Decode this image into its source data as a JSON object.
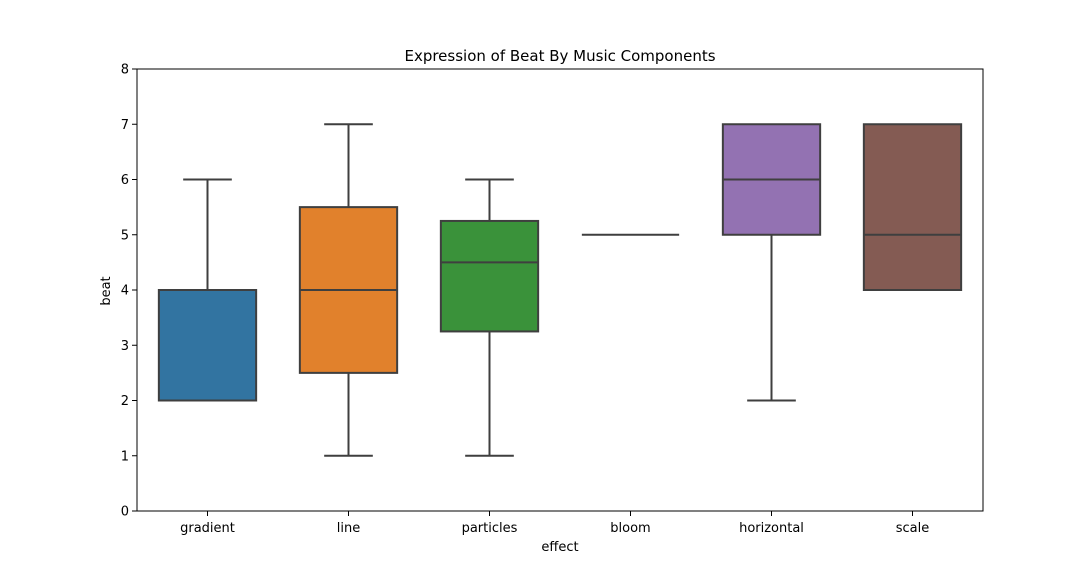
{
  "chart_data": {
    "type": "box",
    "title": "Expression of Beat By Music Components",
    "xlabel": "effect",
    "ylabel": "beat",
    "ylim": [
      0,
      8
    ],
    "yticks": [
      0,
      1,
      2,
      3,
      4,
      5,
      6,
      7,
      8
    ],
    "grid": false,
    "categories": [
      "gradient",
      "line",
      "particles",
      "bloom",
      "horizontal",
      "scale"
    ],
    "boxes": [
      {
        "category": "gradient",
        "whisker_low": 2,
        "q1": 2,
        "median": 2,
        "q3": 4,
        "whisker_high": 6,
        "color": "#3274a1"
      },
      {
        "category": "line",
        "whisker_low": 1,
        "q1": 2.5,
        "median": 4,
        "q3": 5.5,
        "whisker_high": 7,
        "color": "#e1812c"
      },
      {
        "category": "particles",
        "whisker_low": 1,
        "q1": 3.25,
        "median": 4.5,
        "q3": 5.25,
        "whisker_high": 6,
        "color": "#3a923a"
      },
      {
        "category": "bloom",
        "whisker_low": 5,
        "q1": 5,
        "median": 5,
        "q3": 5,
        "whisker_high": 5,
        "color": "#c03d3e"
      },
      {
        "category": "horizontal",
        "whisker_low": 2,
        "q1": 5,
        "median": 6,
        "q3": 7,
        "whisker_high": 7,
        "color": "#9372b2"
      },
      {
        "category": "scale",
        "whisker_low": 4,
        "q1": 4,
        "median": 5,
        "q3": 7,
        "whisker_high": 7,
        "color": "#845b53"
      }
    ]
  }
}
